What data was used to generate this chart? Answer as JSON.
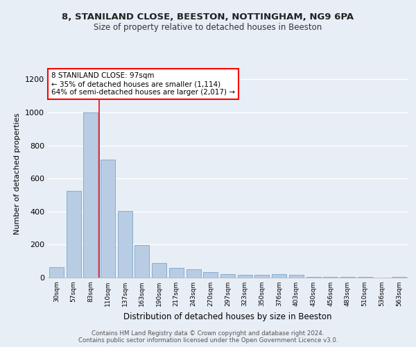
{
  "title1": "8, STANILAND CLOSE, BEESTON, NOTTINGHAM, NG9 6PA",
  "title2": "Size of property relative to detached houses in Beeston",
  "xlabel": "Distribution of detached houses by size in Beeston",
  "ylabel": "Number of detached properties",
  "categories": [
    "30sqm",
    "57sqm",
    "83sqm",
    "110sqm",
    "137sqm",
    "163sqm",
    "190sqm",
    "217sqm",
    "243sqm",
    "270sqm",
    "297sqm",
    "323sqm",
    "350sqm",
    "376sqm",
    "403sqm",
    "430sqm",
    "456sqm",
    "483sqm",
    "510sqm",
    "536sqm",
    "563sqm"
  ],
  "values": [
    65,
    527,
    1000,
    715,
    405,
    197,
    87,
    60,
    50,
    33,
    20,
    15,
    15,
    20,
    15,
    5,
    5,
    5,
    5,
    2,
    5
  ],
  "bar_color": "#b8cce4",
  "bar_edge_color": "#7ba7c9",
  "vline_x": 2.5,
  "vline_color": "red",
  "annotation_text": "8 STANILAND CLOSE: 97sqm\n← 35% of detached houses are smaller (1,114)\n64% of semi-detached houses are larger (2,017) →",
  "annotation_box_color": "white",
  "annotation_box_edge": "red",
  "ylim": [
    0,
    1260
  ],
  "yticks": [
    0,
    200,
    400,
    600,
    800,
    1000,
    1200
  ],
  "footer": "Contains HM Land Registry data © Crown copyright and database right 2024.\nContains public sector information licensed under the Open Government Licence v3.0.",
  "bg_color": "#e8eef6",
  "plot_bg_color": "#e8eef6"
}
